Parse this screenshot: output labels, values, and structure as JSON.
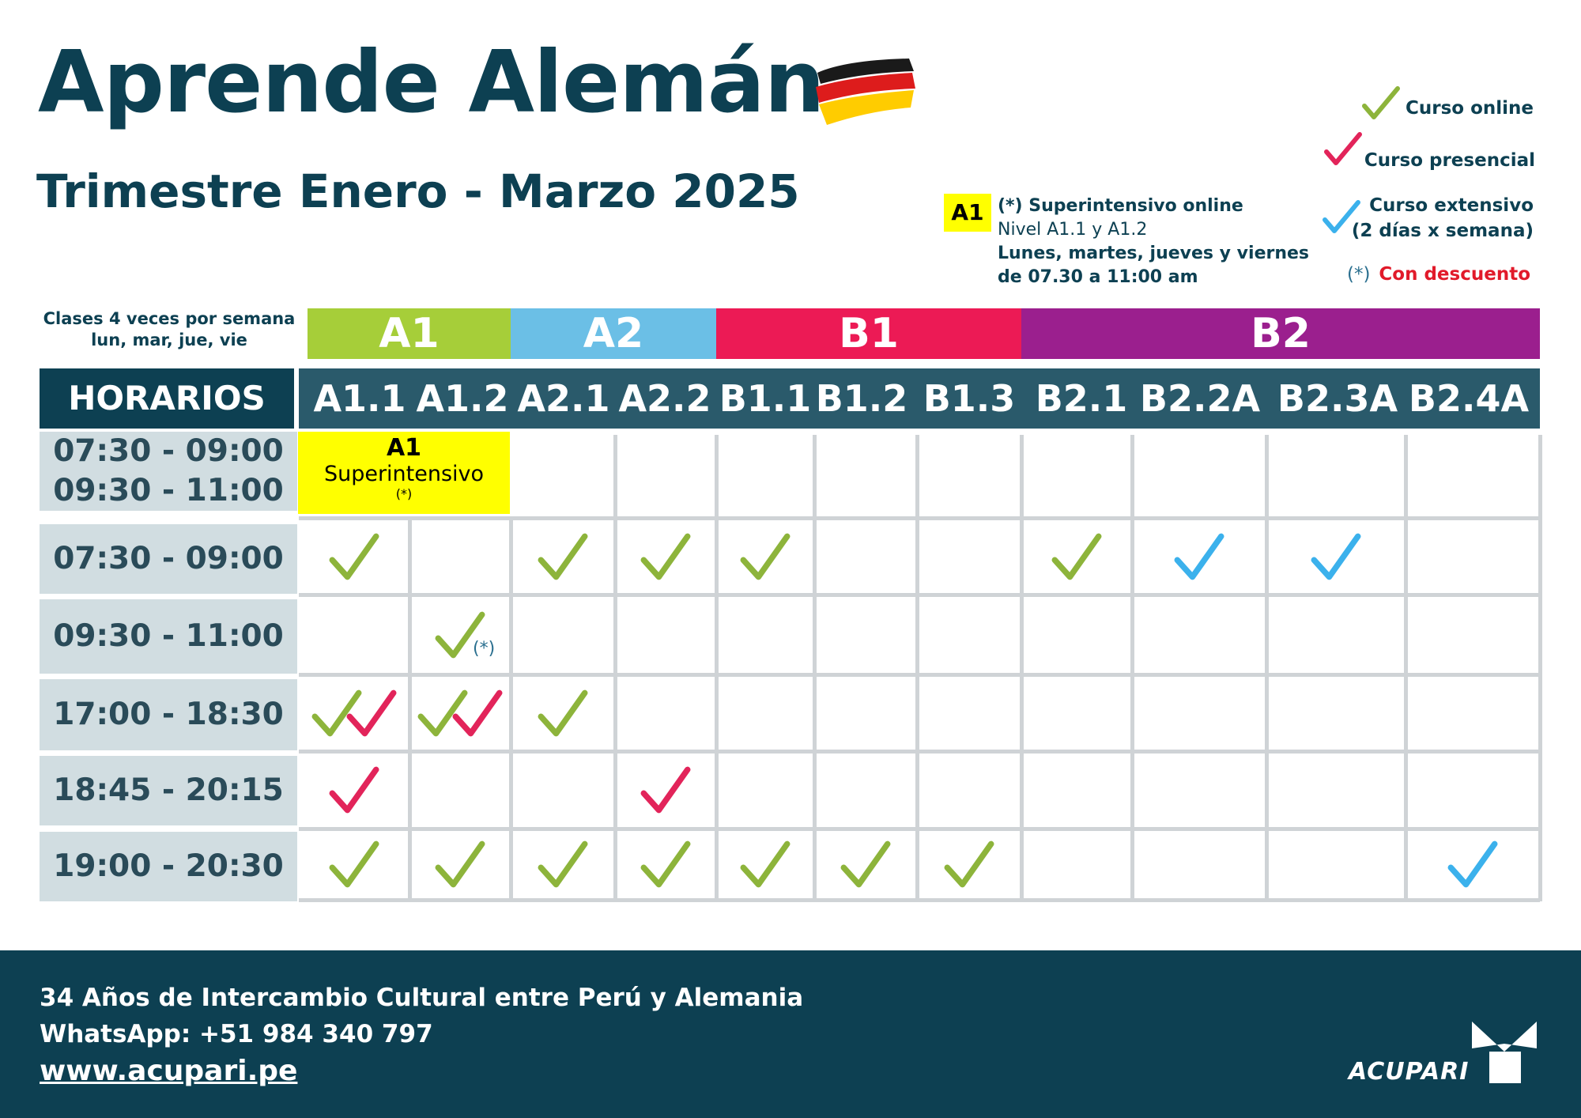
{
  "header": {
    "title": "Aprende Alemán",
    "subtitle": "Trimestre Enero - Marzo 2025"
  },
  "legend": {
    "online": "Curso online",
    "presencial": "Curso presencial",
    "extensivo_1": "Curso extensivo",
    "extensivo_2": "(2 días x semana)",
    "descuento_mark": "(*)",
    "descuento": "Con descuento"
  },
  "superintensivo_note": {
    "badge": "A1",
    "line1": "(*) Superintensivo online",
    "line2": "Nivel A1.1 y A1.2",
    "line3": "Lunes, martes, jueves y viernes",
    "line4": "de 07.30 a 11:00 am"
  },
  "table": {
    "top_left_1": "Clases 4 veces por semana",
    "top_left_2": "lun, mar, jue, vie",
    "levels": [
      {
        "label": "A1",
        "color": "#a6ce39"
      },
      {
        "label": "A2",
        "color": "#6bbfe6"
      },
      {
        "label": "B1",
        "color": "#ec1a55"
      },
      {
        "label": "B2",
        "color": "#9b1f8e"
      }
    ],
    "horarios_label": "HORARIOS",
    "columns": [
      "A1.1",
      "A1.2",
      "A2.1",
      "A2.2",
      "B1.1",
      "B1.2",
      "B1.3",
      "B2.1",
      "B2.2A",
      "B2.3A",
      "B2.4A"
    ],
    "superintensivo_cell": {
      "t1": "A1",
      "t2": "Superintensivo",
      "t3": "(*)"
    },
    "rows": [
      {
        "time_1": "07:30 - 09:00",
        "time_2": "09:30 - 11:00"
      },
      {
        "time": "07:30 - 09:00"
      },
      {
        "time": "09:30 - 11:00",
        "note": "(*)"
      },
      {
        "time": "17:00 - 18:30"
      },
      {
        "time": "18:45 - 20:15"
      },
      {
        "time": "19:00 - 20:30"
      }
    ],
    "marks": [
      [
        1,
        0,
        "online"
      ],
      [
        1,
        2,
        "online"
      ],
      [
        1,
        3,
        "online"
      ],
      [
        1,
        4,
        "online"
      ],
      [
        1,
        7,
        "online"
      ],
      [
        1,
        8,
        "extensivo"
      ],
      [
        1,
        9,
        "extensivo"
      ],
      [
        2,
        1,
        "online"
      ],
      [
        3,
        0,
        "online+presencial"
      ],
      [
        3,
        1,
        "online+presencial"
      ],
      [
        3,
        2,
        "online"
      ],
      [
        4,
        0,
        "presencial"
      ],
      [
        4,
        3,
        "presencial"
      ],
      [
        5,
        0,
        "online"
      ],
      [
        5,
        1,
        "online"
      ],
      [
        5,
        2,
        "online"
      ],
      [
        5,
        3,
        "online"
      ],
      [
        5,
        4,
        "online"
      ],
      [
        5,
        5,
        "online"
      ],
      [
        5,
        6,
        "online"
      ],
      [
        5,
        10,
        "extensivo"
      ]
    ],
    "colors": {
      "online": "#8db43b",
      "presencial": "#e2245a",
      "extensivo": "#3bb1ec"
    }
  },
  "footer": {
    "line1": "34 Años de Intercambio Cultural entre Perú y Alemania",
    "line2": "WhatsApp: +51 984 340 797",
    "url": "www.acupari.pe",
    "logo": "ACUPARI"
  }
}
